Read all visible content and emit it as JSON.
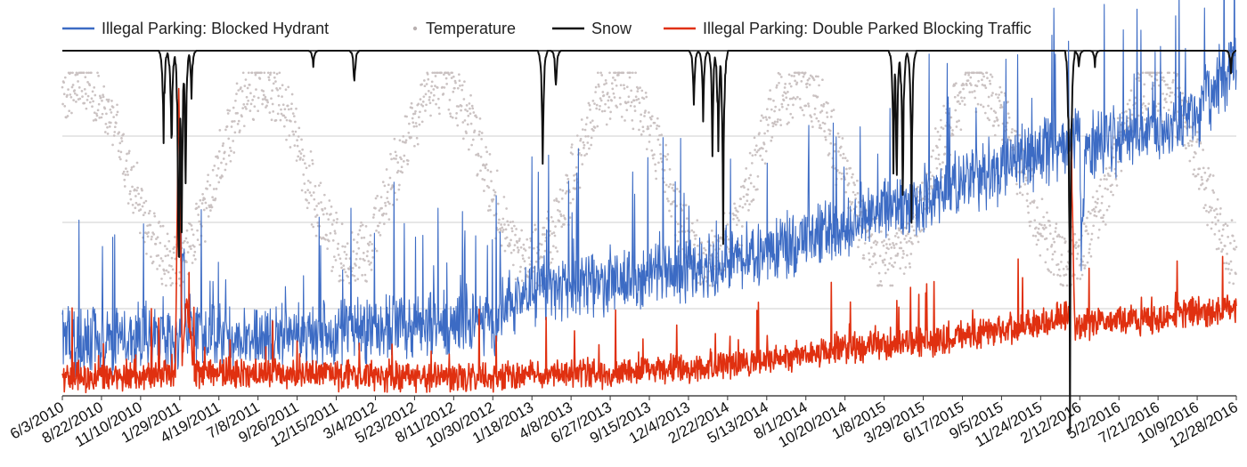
{
  "chart_data": {
    "type": "line",
    "title": "",
    "xlabel": "",
    "ylabel": "",
    "legend_position": "top",
    "grid": true,
    "x_ticks": [
      "6/3/2010",
      "8/22/2010",
      "11/10/2010",
      "1/29/2011",
      "4/19/2011",
      "7/8/2011",
      "9/26/2011",
      "12/15/2011",
      "3/4/2012",
      "5/23/2012",
      "8/11/2012",
      "10/30/2012",
      "1/18/2013",
      "4/8/2013",
      "6/27/2013",
      "9/15/2013",
      "12/4/2013",
      "2/22/2014",
      "5/13/2014",
      "8/1/2014",
      "10/20/2014",
      "1/8/2015",
      "3/29/2015",
      "6/17/2015",
      "9/5/2015",
      "11/24/2015",
      "2/12/2016",
      "5/2/2016",
      "7/21/2016",
      "10/9/2016",
      "12/28/2016"
    ],
    "x_range": [
      "6/3/2010",
      "12/28/2016"
    ],
    "series": [
      {
        "name": "Illegal Parking: Blocked Hydrant",
        "color": "#3c6bc4",
        "style": "line",
        "axis": "left",
        "points": [
          [
            "6/3/2010",
            0.22
          ],
          [
            "9/1/2010",
            0.21
          ],
          [
            "12/1/2010",
            0.24
          ],
          [
            "1/29/2011",
            0.2
          ],
          [
            "2/5/2011",
            0.52
          ],
          [
            "2/12/2011",
            0.27
          ],
          [
            "4/19/2011",
            0.22
          ],
          [
            "9/26/2011",
            0.25
          ],
          [
            "12/15/2011",
            0.24
          ],
          [
            "5/23/2012",
            0.26
          ],
          [
            "10/30/2012",
            0.28
          ],
          [
            "11/15/2012",
            0.34
          ],
          [
            "1/18/2013",
            0.4
          ],
          [
            "6/27/2013",
            0.44
          ],
          [
            "12/4/2013",
            0.48
          ],
          [
            "5/13/2014",
            0.55
          ],
          [
            "10/20/2014",
            0.65
          ],
          [
            "3/29/2015",
            0.76
          ],
          [
            "9/5/2015",
            0.88
          ],
          [
            "2/12/2016",
            1.0
          ],
          [
            "2/15/2016",
            0.55
          ],
          [
            "2/25/2016",
            0.95
          ],
          [
            "7/21/2016",
            1.02
          ],
          [
            "10/9/2016",
            1.08
          ],
          [
            "12/28/2016",
            1.28
          ]
        ]
      },
      {
        "name": "Temperature",
        "color": "#c8c0c0",
        "style": "scatter",
        "axis": "right",
        "cycle": {
          "min": 0.2,
          "max": 0.98,
          "peak_month": 7
        }
      },
      {
        "name": "Snow",
        "color": "#111111",
        "style": "line",
        "axis": "top-inverted",
        "events": [
          [
            "12/27/2010",
            0.25
          ],
          [
            "1/12/2011",
            0.32
          ],
          [
            "1/27/2011",
            0.75
          ],
          [
            "2/2/2011",
            0.5
          ],
          [
            "2/10/2011",
            0.38
          ],
          [
            "2/22/2011",
            0.12
          ],
          [
            "10/29/2011",
            0.05
          ],
          [
            "1/21/2012",
            0.11
          ],
          [
            "2/9/2013",
            0.35
          ],
          [
            "3/8/2013",
            0.11
          ],
          [
            "12/15/2013",
            0.15
          ],
          [
            "1/3/2014",
            0.22
          ],
          [
            "1/22/2014",
            0.25
          ],
          [
            "2/3/2014",
            0.32
          ],
          [
            "2/13/2014",
            0.5
          ],
          [
            "1/27/2015",
            0.3
          ],
          [
            "2/3/2015",
            0.4
          ],
          [
            "2/15/2015",
            0.45
          ],
          [
            "3/5/2015",
            0.42
          ],
          [
            "1/23/2016",
            1.0
          ],
          [
            "2/10/2016",
            0.05
          ],
          [
            "3/14/2016",
            0.04
          ],
          [
            "12/17/2016",
            0.06
          ]
        ]
      },
      {
        "name": "Illegal Parking: Double Parked Blocking Traffic",
        "color": "#e03010",
        "style": "line",
        "axis": "left",
        "points": [
          [
            "6/3/2010",
            0.07
          ],
          [
            "1/20/2011",
            0.08
          ],
          [
            "1/27/2011",
            1.23
          ],
          [
            "2/3/2011",
            0.15
          ],
          [
            "2/12/2011",
            0.36
          ],
          [
            "3/1/2011",
            0.09
          ],
          [
            "10/30/2012",
            0.07
          ],
          [
            "1/18/2013",
            0.08
          ],
          [
            "6/27/2013",
            0.09
          ],
          [
            "12/4/2013",
            0.11
          ],
          [
            "5/13/2014",
            0.14
          ],
          [
            "10/20/2014",
            0.18
          ],
          [
            "3/29/2015",
            0.21
          ],
          [
            "9/5/2015",
            0.25
          ],
          [
            "1/23/2016",
            0.31
          ],
          [
            "1/26/2016",
            0.95
          ],
          [
            "2/1/2016",
            0.27
          ],
          [
            "7/21/2016",
            0.3
          ],
          [
            "12/28/2016",
            0.34
          ]
        ]
      }
    ]
  }
}
